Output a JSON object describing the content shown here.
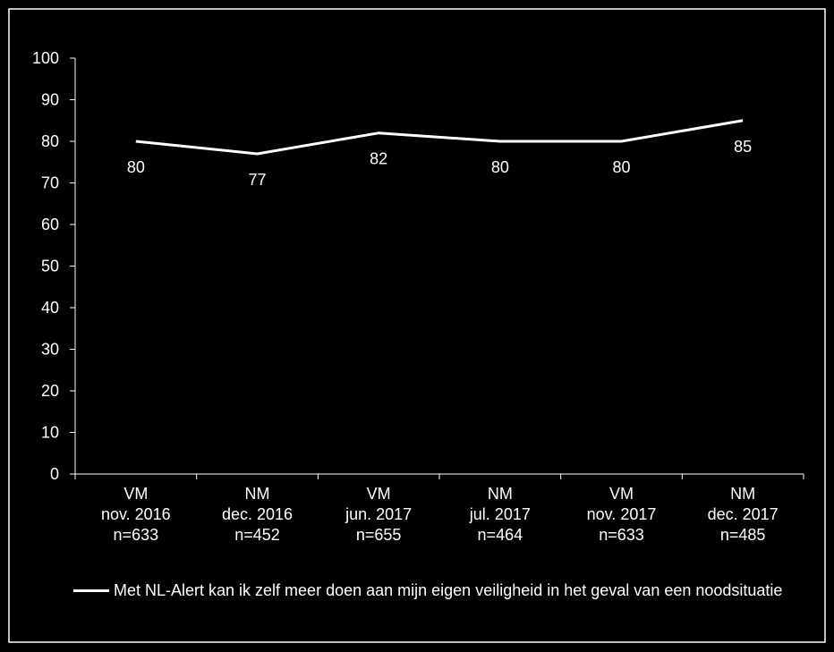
{
  "chart_data": {
    "type": "line",
    "categories": [
      [
        "VM",
        "nov. 2016",
        "n=633"
      ],
      [
        "NM",
        "dec. 2016",
        "n=452"
      ],
      [
        "VM",
        "jun. 2017",
        "n=655"
      ],
      [
        "NM",
        "jul. 2017",
        "n=464"
      ],
      [
        "VM",
        "nov. 2017",
        "n=633"
      ],
      [
        "NM",
        "dec. 2017",
        "n=485"
      ]
    ],
    "series": [
      {
        "name": "Met NL-Alert kan ik zelf meer doen aan mijn eigen veiligheid in het geval van een noodsituatie",
        "color": "#ffffff",
        "values": [
          80,
          77,
          82,
          80,
          80,
          85
        ]
      }
    ],
    "ylim": [
      0,
      100
    ],
    "yticks": [
      0,
      10,
      20,
      30,
      40,
      50,
      60,
      70,
      80,
      90,
      100
    ],
    "grid": false,
    "legend": "bottom"
  }
}
